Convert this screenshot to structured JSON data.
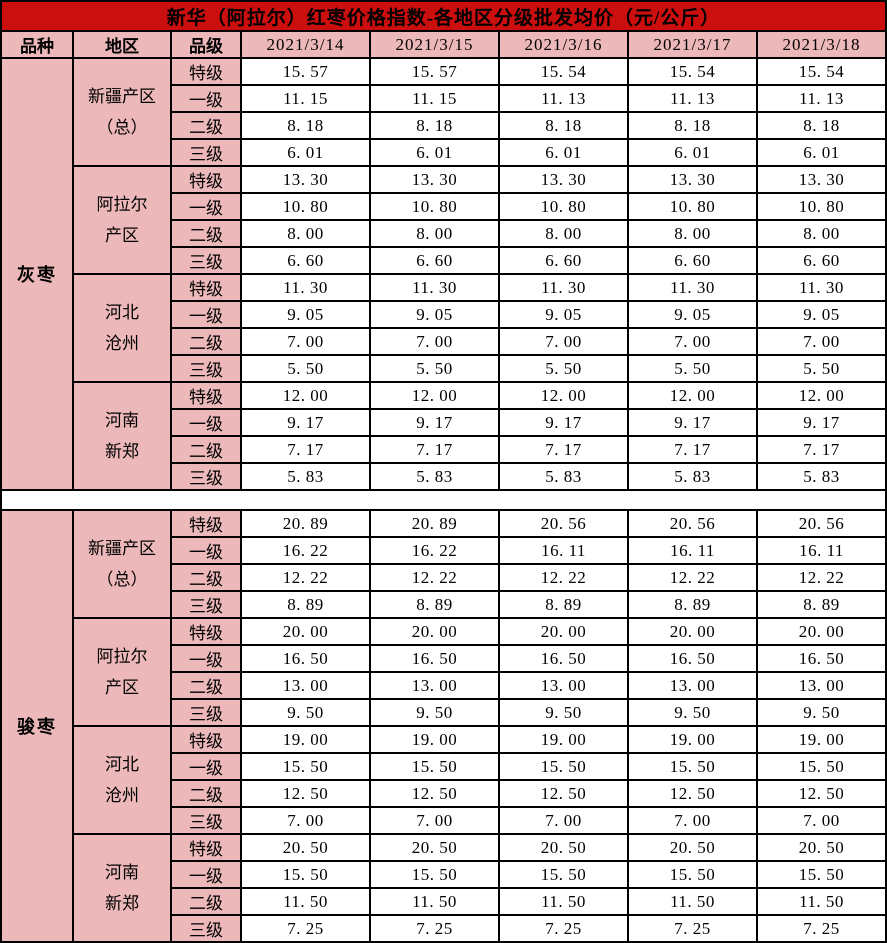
{
  "title": "新华（阿拉尔）红枣价格指数-各地区分级批发均价（元/公斤）",
  "columns": {
    "variety": "品种",
    "region": "地区",
    "grade": "品级",
    "dates": [
      "2021/3/14",
      "2021/3/15",
      "2021/3/16",
      "2021/3/17",
      "2021/3/18"
    ]
  },
  "colors": {
    "title_bg": "#CB0E0E",
    "panel_bg": "#ECB8B9",
    "cell_bg": "#FFFFFF",
    "border": "#000000",
    "text": "#000000"
  },
  "sections": [
    {
      "variety": "灰枣",
      "regions": [
        {
          "lines": [
            "新疆产区",
            "（总）"
          ],
          "rows": [
            {
              "grade": "特级",
              "values": [
                "15.57",
                "15.57",
                "15.54",
                "15.54",
                "15.54"
              ]
            },
            {
              "grade": "一级",
              "values": [
                "11.15",
                "11.15",
                "11.13",
                "11.13",
                "11.13"
              ]
            },
            {
              "grade": "二级",
              "values": [
                "8.18",
                "8.18",
                "8.18",
                "8.18",
                "8.18"
              ]
            },
            {
              "grade": "三级",
              "values": [
                "6.01",
                "6.01",
                "6.01",
                "6.01",
                "6.01"
              ]
            }
          ]
        },
        {
          "lines": [
            "阿拉尔",
            "产区"
          ],
          "rows": [
            {
              "grade": "特级",
              "values": [
                "13.30",
                "13.30",
                "13.30",
                "13.30",
                "13.30"
              ]
            },
            {
              "grade": "一级",
              "values": [
                "10.80",
                "10.80",
                "10.80",
                "10.80",
                "10.80"
              ]
            },
            {
              "grade": "二级",
              "values": [
                "8.00",
                "8.00",
                "8.00",
                "8.00",
                "8.00"
              ]
            },
            {
              "grade": "三级",
              "values": [
                "6.60",
                "6.60",
                "6.60",
                "6.60",
                "6.60"
              ]
            }
          ]
        },
        {
          "lines": [
            "河北",
            "沧州"
          ],
          "rows": [
            {
              "grade": "特级",
              "values": [
                "11.30",
                "11.30",
                "11.30",
                "11.30",
                "11.30"
              ]
            },
            {
              "grade": "一级",
              "values": [
                "9.05",
                "9.05",
                "9.05",
                "9.05",
                "9.05"
              ]
            },
            {
              "grade": "二级",
              "values": [
                "7.00",
                "7.00",
                "7.00",
                "7.00",
                "7.00"
              ]
            },
            {
              "grade": "三级",
              "values": [
                "5.50",
                "5.50",
                "5.50",
                "5.50",
                "5.50"
              ]
            }
          ]
        },
        {
          "lines": [
            "河南",
            "新郑"
          ],
          "rows": [
            {
              "grade": "特级",
              "values": [
                "12.00",
                "12.00",
                "12.00",
                "12.00",
                "12.00"
              ]
            },
            {
              "grade": "一级",
              "values": [
                "9.17",
                "9.17",
                "9.17",
                "9.17",
                "9.17"
              ]
            },
            {
              "grade": "二级",
              "values": [
                "7.17",
                "7.17",
                "7.17",
                "7.17",
                "7.17"
              ]
            },
            {
              "grade": "三级",
              "values": [
                "5.83",
                "5.83",
                "5.83",
                "5.83",
                "5.83"
              ]
            }
          ]
        }
      ]
    },
    {
      "variety": "骏枣",
      "regions": [
        {
          "lines": [
            "新疆产区",
            "（总）"
          ],
          "rows": [
            {
              "grade": "特级",
              "values": [
                "20.89",
                "20.89",
                "20.56",
                "20.56",
                "20.56"
              ]
            },
            {
              "grade": "一级",
              "values": [
                "16.22",
                "16.22",
                "16.11",
                "16.11",
                "16.11"
              ]
            },
            {
              "grade": "二级",
              "values": [
                "12.22",
                "12.22",
                "12.22",
                "12.22",
                "12.22"
              ]
            },
            {
              "grade": "三级",
              "values": [
                "8.89",
                "8.89",
                "8.89",
                "8.89",
                "8.89"
              ]
            }
          ]
        },
        {
          "lines": [
            "阿拉尔",
            "产区"
          ],
          "rows": [
            {
              "grade": "特级",
              "values": [
                "20.00",
                "20.00",
                "20.00",
                "20.00",
                "20.00"
              ]
            },
            {
              "grade": "一级",
              "values": [
                "16.50",
                "16.50",
                "16.50",
                "16.50",
                "16.50"
              ]
            },
            {
              "grade": "二级",
              "values": [
                "13.00",
                "13.00",
                "13.00",
                "13.00",
                "13.00"
              ]
            },
            {
              "grade": "三级",
              "values": [
                "9.50",
                "9.50",
                "9.50",
                "9.50",
                "9.50"
              ]
            }
          ]
        },
        {
          "lines": [
            "河北",
            "沧州"
          ],
          "rows": [
            {
              "grade": "特级",
              "values": [
                "19.00",
                "19.00",
                "19.00",
                "19.00",
                "19.00"
              ]
            },
            {
              "grade": "一级",
              "values": [
                "15.50",
                "15.50",
                "15.50",
                "15.50",
                "15.50"
              ]
            },
            {
              "grade": "二级",
              "values": [
                "12.50",
                "12.50",
                "12.50",
                "12.50",
                "12.50"
              ]
            },
            {
              "grade": "三级",
              "values": [
                "7.00",
                "7.00",
                "7.00",
                "7.00",
                "7.00"
              ]
            }
          ]
        },
        {
          "lines": [
            "河南",
            "新郑"
          ],
          "rows": [
            {
              "grade": "特级",
              "values": [
                "20.50",
                "20.50",
                "20.50",
                "20.50",
                "20.50"
              ]
            },
            {
              "grade": "一级",
              "values": [
                "15.50",
                "15.50",
                "15.50",
                "15.50",
                "15.50"
              ]
            },
            {
              "grade": "二级",
              "values": [
                "11.50",
                "11.50",
                "11.50",
                "11.50",
                "11.50"
              ]
            },
            {
              "grade": "三级",
              "values": [
                "7.25",
                "7.25",
                "7.25",
                "7.25",
                "7.25"
              ]
            }
          ]
        }
      ]
    }
  ]
}
